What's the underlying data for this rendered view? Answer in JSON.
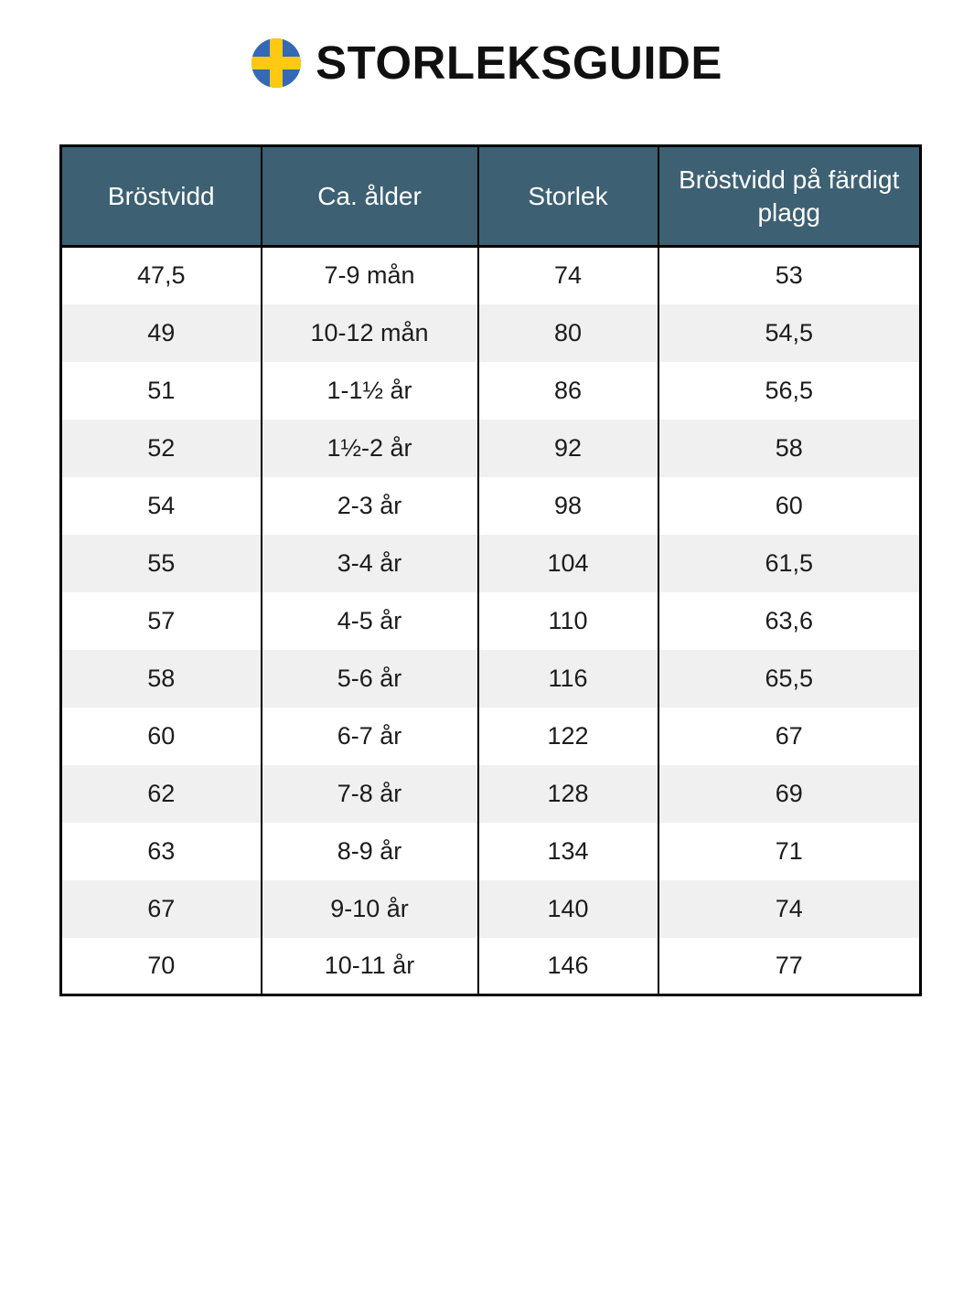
{
  "header": {
    "title": "STORLEKSGUIDE",
    "flag_icon": "swedish-flag-icon",
    "flag_colors": {
      "blue": "#3569b5",
      "yellow": "#fdc913"
    }
  },
  "table": {
    "columns": [
      "Bröstvidd",
      "Ca. ålder",
      "Storlek",
      "Bröstvidd på färdigt plagg"
    ],
    "rows": [
      [
        "47,5",
        "7-9 mån",
        "74",
        "53"
      ],
      [
        "49",
        "10-12 mån",
        "80",
        "54,5"
      ],
      [
        "51",
        "1-1½ år",
        "86",
        "56,5"
      ],
      [
        "52",
        "1½-2 år",
        "92",
        "58"
      ],
      [
        "54",
        "2-3 år",
        "98",
        "60"
      ],
      [
        "55",
        "3-4 år",
        "104",
        "61,5"
      ],
      [
        "57",
        "4-5 år",
        "110",
        "63,6"
      ],
      [
        "58",
        "5-6 år",
        "116",
        "65,5"
      ],
      [
        "60",
        "6-7 år",
        "122",
        "67"
      ],
      [
        "62",
        "7-8 år",
        "128",
        "69"
      ],
      [
        "63",
        "8-9 år",
        "134",
        "71"
      ],
      [
        "67",
        "9-10 år",
        "140",
        "74"
      ],
      [
        "70",
        "10-11 år",
        "146",
        "77"
      ]
    ],
    "colors": {
      "header_bg": "#3d6073",
      "header_text": "#ffffff",
      "row_alt_bg": "#f0f0f0",
      "border": "#000000",
      "body_text": "#1c1c1c"
    }
  }
}
